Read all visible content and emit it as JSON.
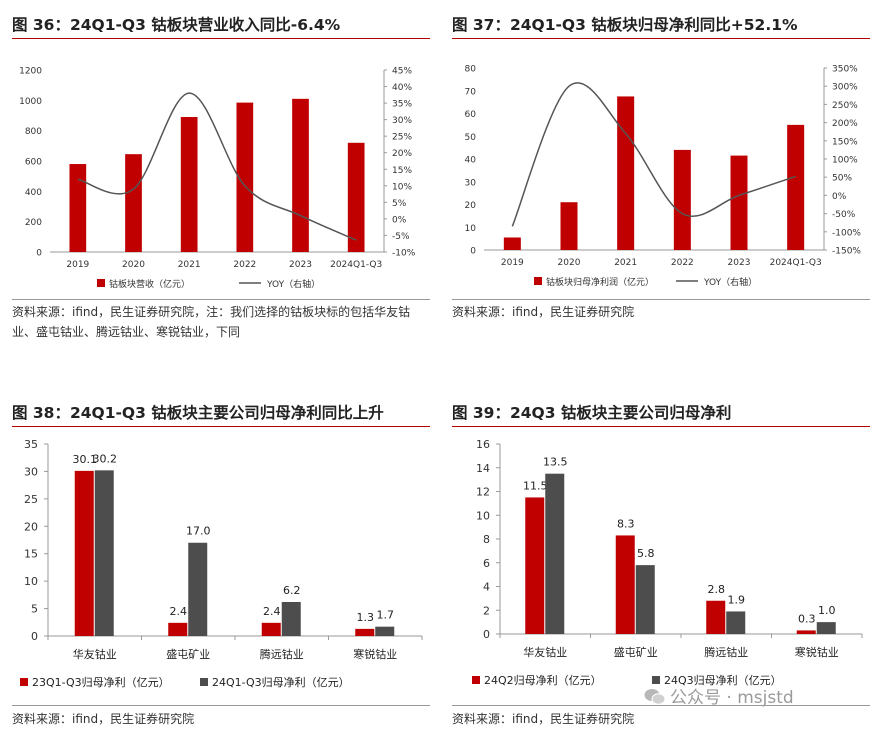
{
  "colors": {
    "red": "#c00000",
    "gray": "#4d4d4d",
    "line": "#555555",
    "title_rule": "#b00000"
  },
  "chart_data": [
    {
      "id": "fig36",
      "type": "bar",
      "title": "图 36：24Q1-Q3 钴板块营业收入同比-6.4%",
      "categories": [
        "2019",
        "2020",
        "2021",
        "2022",
        "2023",
        "2024Q1-Q3"
      ],
      "series": [
        {
          "name": "钴板块营收（亿元）",
          "kind": "bar",
          "axis": "left",
          "values": [
            580,
            645,
            890,
            985,
            1010,
            720
          ]
        },
        {
          "name": "YOY（右轴）",
          "kind": "line",
          "axis": "right",
          "values": [
            12,
            9,
            38,
            10,
            1,
            -6.4
          ]
        }
      ],
      "ylim": [
        0,
        1200
      ],
      "yticks": [
        "0",
        "200",
        "400",
        "600",
        "800",
        "1000",
        "1200"
      ],
      "y2lim": [
        -10,
        45
      ],
      "y2ticks": [
        "-10%",
        "-5%",
        "0%",
        "5%",
        "10%",
        "15%",
        "20%",
        "25%",
        "30%",
        "35%",
        "40%",
        "45%"
      ],
      "source": "资料来源：ifind，民生证券研究院，注：我们选择的钴板块标的包括华友钴业、盛屯钴业、腾远钴业、寒锐钴业，下同"
    },
    {
      "id": "fig37",
      "type": "bar",
      "title": "图 37：24Q1-Q3 钴板块归母净利同比+52.1%",
      "categories": [
        "2019",
        "2020",
        "2021",
        "2022",
        "2023",
        "2024Q1-Q3"
      ],
      "series": [
        {
          "name": "钴板块归母净利润（亿元）",
          "kind": "bar",
          "axis": "left",
          "values": [
            5.5,
            21,
            67.5,
            44,
            41.5,
            55
          ]
        },
        {
          "name": "YOY（右轴）",
          "kind": "line",
          "axis": "right",
          "values": [
            -85,
            300,
            170,
            -50,
            0,
            52.1
          ]
        }
      ],
      "ylim": [
        0,
        80
      ],
      "yticks": [
        "0",
        "10",
        "20",
        "30",
        "40",
        "50",
        "60",
        "70",
        "80"
      ],
      "y2lim": [
        -150,
        350
      ],
      "y2ticks": [
        "-150%",
        "-100%",
        "-50%",
        "0%",
        "50%",
        "100%",
        "150%",
        "200%",
        "250%",
        "300%",
        "350%"
      ],
      "source": "资料来源：ifind，民生证券研究院"
    },
    {
      "id": "fig38",
      "type": "bar",
      "title": "图 38：24Q1-Q3 钴板块主要公司归母净利同比上升",
      "categories": [
        "华友钴业",
        "盛屯矿业",
        "腾远钴业",
        "寒锐钴业"
      ],
      "series": [
        {
          "name": "23Q1-Q3归母净利（亿元）",
          "labels": [
            "30.1",
            "2.4",
            "2.4",
            "1.3"
          ],
          "values": [
            30.1,
            2.4,
            2.4,
            1.3
          ]
        },
        {
          "name": "24Q1-Q3归母净利（亿元）",
          "labels": [
            "30.2",
            "17.0",
            "6.2",
            "1.7"
          ],
          "values": [
            30.2,
            17.0,
            6.2,
            1.7
          ]
        }
      ],
      "ylim": [
        0,
        35
      ],
      "yticks": [
        "0",
        "5",
        "10",
        "15",
        "20",
        "25",
        "30",
        "35"
      ],
      "source": "资料来源：ifind，民生证券研究院"
    },
    {
      "id": "fig39",
      "type": "bar",
      "title": "图 39：24Q3 钴板块主要公司归母净利",
      "categories": [
        "华友钴业",
        "盛屯矿业",
        "腾远钴业",
        "寒锐钴业"
      ],
      "series": [
        {
          "name": "24Q2归母净利（亿元）",
          "labels": [
            "11.5",
            "8.3",
            "2.8",
            "0.3"
          ],
          "values": [
            11.5,
            8.3,
            2.8,
            0.3
          ]
        },
        {
          "name": "24Q3归母净利（亿元）",
          "labels": [
            "13.5",
            "5.8",
            "1.9",
            "1.0"
          ],
          "values": [
            13.5,
            5.8,
            1.9,
            1.0
          ]
        }
      ],
      "ylim": [
        0,
        16
      ],
      "yticks": [
        "0",
        "2",
        "4",
        "6",
        "8",
        "10",
        "12",
        "14",
        "16"
      ],
      "source": "资料来源：ifind，民生证券研究院"
    }
  ],
  "watermark": {
    "text": "公众号 · msjstd",
    "icon": "wechat-icon"
  }
}
